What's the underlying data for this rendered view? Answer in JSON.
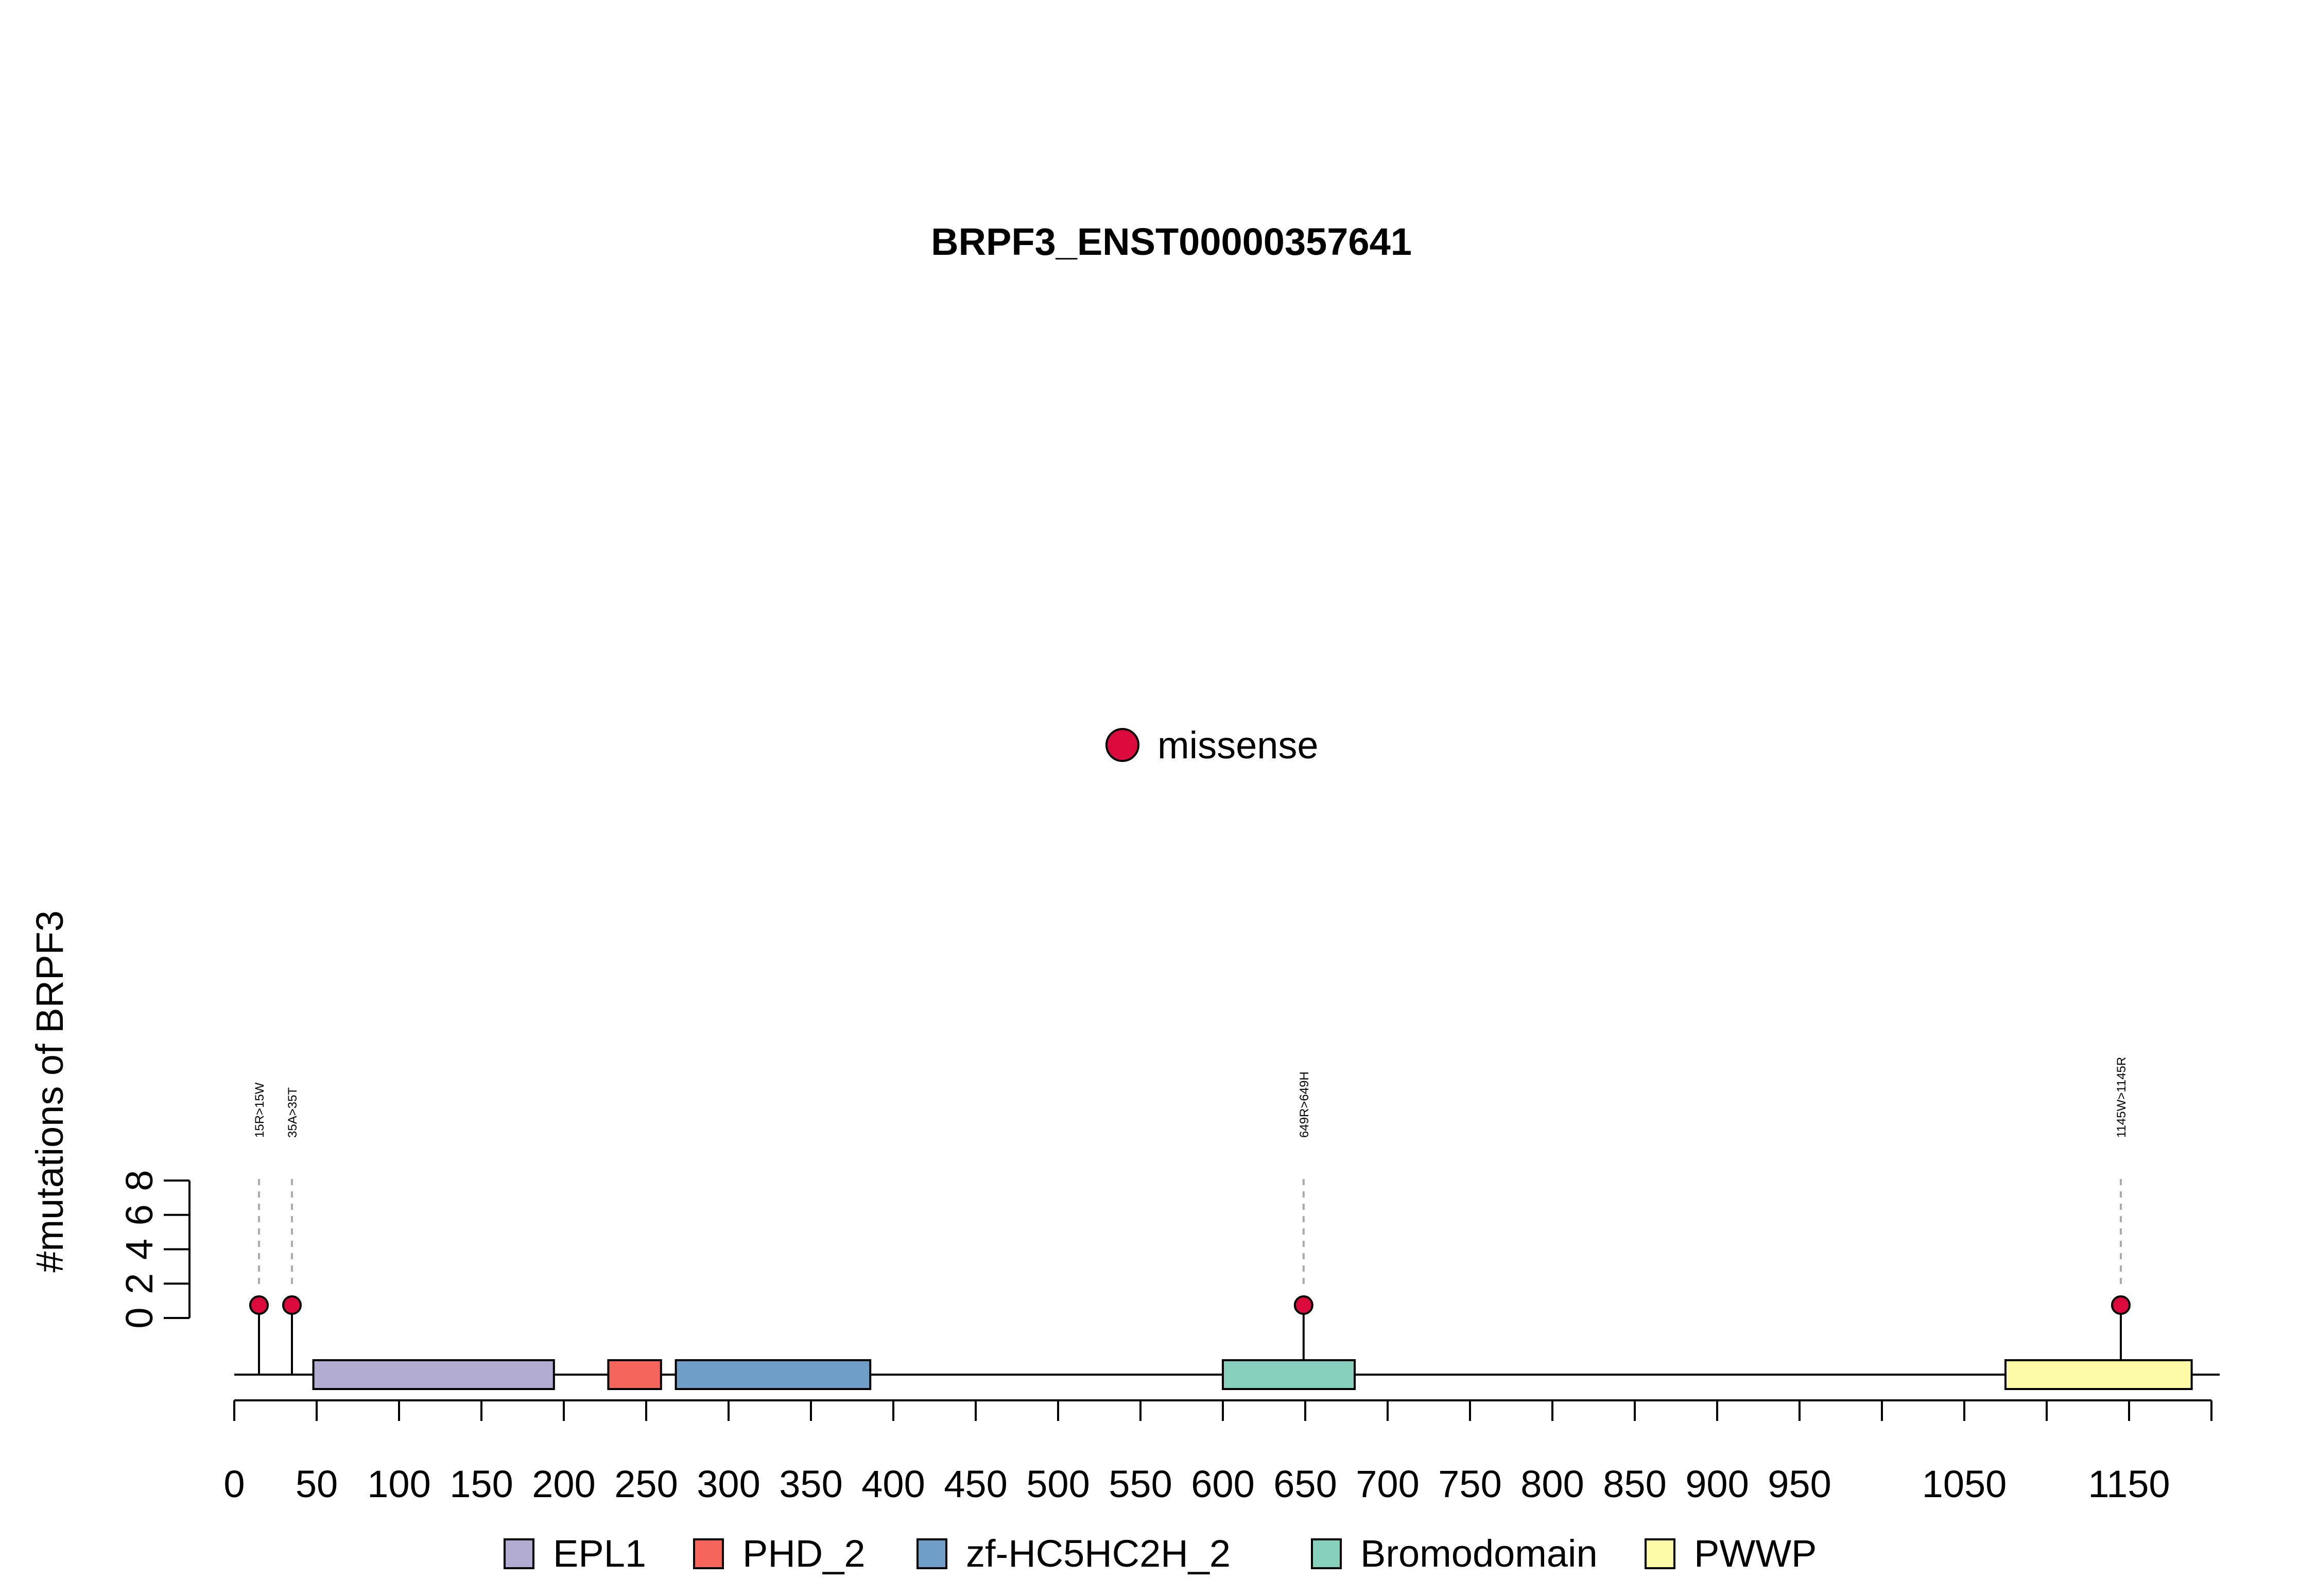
{
  "chart_data": {
    "type": "lollipop",
    "title": "BRPF3_ENST00000357641",
    "ylabel": "#mutations of BRPF3",
    "xlim": [
      0,
      1205
    ],
    "x_ticks": [
      0,
      50,
      100,
      150,
      200,
      250,
      300,
      350,
      400,
      450,
      500,
      550,
      600,
      650,
      700,
      750,
      800,
      850,
      900,
      950,
      1000,
      1050,
      1100,
      1150,
      1200
    ],
    "x_tick_labels": [
      "0",
      "50",
      "100",
      "150",
      "200",
      "250",
      "300",
      "350",
      "400",
      "450",
      "500",
      "550",
      "600",
      "650",
      "700",
      "750",
      "800",
      "850",
      "900",
      "950",
      "",
      "1050",
      "",
      "1150",
      ""
    ],
    "y_ticks": [
      0,
      2,
      4,
      6,
      8
    ],
    "ylim": [
      0,
      8
    ],
    "mutation_legend": [
      {
        "label": "missense",
        "color": "#dc0a3c"
      }
    ],
    "mutations": [
      {
        "position": 15,
        "label": "15R>15W",
        "count": 1,
        "type": "missense"
      },
      {
        "position": 35,
        "label": "35A>35T",
        "count": 1,
        "type": "missense"
      },
      {
        "position": 649,
        "label": "649R>649H",
        "count": 1,
        "type": "missense"
      },
      {
        "position": 1145,
        "label": "1145W>1145R",
        "count": 1,
        "type": "missense"
      }
    ],
    "domains": [
      {
        "name": "EPL1",
        "start": 48,
        "end": 194,
        "color": "#b3acd2"
      },
      {
        "name": "PHD_2",
        "start": 227,
        "end": 259,
        "color": "#f5655b"
      },
      {
        "name": "zf-HC5HC2H_2",
        "start": 268,
        "end": 386,
        "color": "#6f9ec9"
      },
      {
        "name": "Bromodomain",
        "start": 600,
        "end": 680,
        "color": "#86d0bc"
      },
      {
        "name": "PWWP",
        "start": 1075,
        "end": 1188,
        "color": "#fdfba8"
      }
    ]
  }
}
